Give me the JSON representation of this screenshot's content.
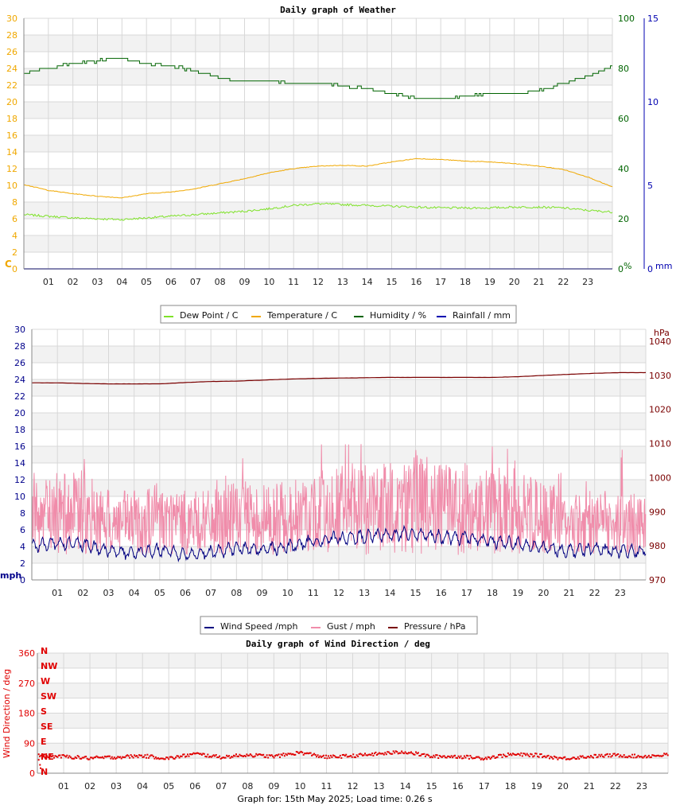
{
  "footer": "Graph for: 15th May 2025; Load time: 0.26 s",
  "colors": {
    "dew": "#7fe22a",
    "temp": "#f0a800",
    "hum": "#006400",
    "rain": "#0000b0",
    "wind": "#000080",
    "gust": "#f08caa",
    "press": "#7a0000",
    "dir": "#e00000",
    "band": "#f2f2f2",
    "grid": "#d8d8d8"
  },
  "chart_data": [
    {
      "id": "weather",
      "type": "line",
      "title": "Daily graph of Weather",
      "x_ticks": [
        "01",
        "02",
        "03",
        "04",
        "05",
        "06",
        "07",
        "08",
        "09",
        "10",
        "11",
        "12",
        "13",
        "14",
        "15",
        "16",
        "17",
        "18",
        "19",
        "20",
        "21",
        "22",
        "23"
      ],
      "y_left": {
        "unit": "C",
        "ticks": [
          0,
          2,
          4,
          6,
          8,
          10,
          12,
          14,
          16,
          18,
          20,
          22,
          24,
          26,
          28,
          30
        ],
        "ylim": [
          0,
          30
        ]
      },
      "y_right_1": {
        "unit": "%",
        "ticks": [
          0,
          20,
          40,
          60,
          80,
          100
        ],
        "ylim": [
          0,
          100
        ]
      },
      "y_right_2": {
        "unit": "mm",
        "ticks": [
          0,
          5,
          10,
          15
        ],
        "ylim": [
          0,
          15
        ]
      },
      "grid": true,
      "legend": [
        "Dew Point / C",
        "Temperature / C",
        "Humidity / %",
        "Rainfall / mm"
      ],
      "series": [
        {
          "name": "Dew Point / C",
          "axis": "left",
          "x": [
            0,
            1,
            2,
            3,
            4,
            5,
            6,
            7,
            8,
            9,
            10,
            11,
            12,
            13,
            14,
            15,
            16,
            17,
            18,
            19,
            20,
            21,
            22,
            23,
            24
          ],
          "values": [
            6.5,
            6.3,
            6.1,
            6.0,
            5.9,
            6.1,
            6.3,
            6.5,
            6.7,
            6.9,
            7.2,
            7.6,
            7.8,
            7.7,
            7.6,
            7.5,
            7.4,
            7.3,
            7.3,
            7.3,
            7.4,
            7.4,
            7.3,
            7.0,
            6.8
          ]
        },
        {
          "name": "Temperature / C",
          "axis": "left",
          "x": [
            0,
            1,
            2,
            3,
            4,
            5,
            6,
            7,
            8,
            9,
            10,
            11,
            12,
            13,
            14,
            15,
            16,
            17,
            18,
            19,
            20,
            21,
            22,
            23,
            24
          ],
          "values": [
            10.1,
            9.4,
            9.0,
            8.7,
            8.5,
            9.0,
            9.2,
            9.6,
            10.2,
            10.8,
            11.5,
            12.0,
            12.3,
            12.4,
            12.3,
            12.8,
            13.2,
            13.1,
            12.9,
            12.8,
            12.6,
            12.3,
            11.9,
            11.0,
            9.8
          ]
        },
        {
          "name": "Humidity / %",
          "axis": "right1",
          "x": [
            0,
            1,
            2,
            3,
            3.5,
            4,
            5,
            6,
            7,
            8,
            9,
            10,
            11,
            12,
            13,
            14,
            15,
            16,
            17,
            18,
            19,
            20,
            21,
            22,
            23,
            24
          ],
          "values": [
            78,
            80,
            82,
            83,
            84,
            84,
            82,
            81,
            79,
            76,
            75,
            75,
            74,
            74,
            73,
            72,
            70,
            68,
            68,
            69,
            70,
            70,
            71,
            74,
            77,
            81
          ]
        },
        {
          "name": "Rainfall / mm",
          "axis": "right2",
          "x": [
            0,
            24
          ],
          "values": [
            0,
            0
          ]
        }
      ]
    },
    {
      "id": "wind",
      "type": "line",
      "title": "",
      "x_ticks": [
        "01",
        "02",
        "03",
        "04",
        "05",
        "06",
        "07",
        "08",
        "09",
        "10",
        "11",
        "12",
        "13",
        "14",
        "15",
        "16",
        "17",
        "18",
        "19",
        "20",
        "21",
        "22",
        "23"
      ],
      "y_left": {
        "unit": "mph",
        "ticks": [
          0,
          2,
          4,
          6,
          8,
          10,
          12,
          14,
          16,
          18,
          20,
          22,
          24,
          26,
          28,
          30
        ],
        "ylim": [
          0,
          30
        ]
      },
      "y_right": {
        "unit": "hPa",
        "ticks": [
          970,
          980,
          990,
          1000,
          1010,
          1020,
          1030,
          1040
        ],
        "ylim": [
          970,
          1043.5
        ]
      },
      "grid": true,
      "legend": [
        "Wind Speed /mph",
        "Gust / mph",
        "Pressure / hPa"
      ],
      "series": [
        {
          "name": "Wind Speed /mph",
          "axis": "left",
          "x": [
            0,
            1,
            2,
            3,
            4,
            5,
            6,
            7,
            8,
            9,
            10,
            11,
            12,
            13,
            14,
            15,
            16,
            17,
            18,
            19,
            20,
            21,
            22,
            23,
            24
          ],
          "values": [
            4.0,
            4.5,
            4.2,
            3.5,
            3.2,
            3.6,
            3.0,
            3.3,
            3.8,
            3.6,
            4.0,
            4.6,
            5.0,
            5.2,
            5.4,
            5.6,
            5.1,
            5.0,
            4.6,
            4.3,
            3.8,
            3.5,
            3.7,
            3.4,
            3.4
          ]
        },
        {
          "name": "Gust / mph",
          "axis": "left",
          "x": [
            0,
            1,
            2,
            3,
            4,
            5,
            6,
            7,
            8,
            9,
            10,
            11,
            12,
            13,
            14,
            15,
            16,
            17,
            18,
            19,
            20,
            21,
            22,
            23,
            24
          ],
          "values": [
            8,
            9,
            9,
            7,
            7,
            8,
            7,
            7,
            8,
            8,
            8,
            9,
            10,
            10,
            10,
            11,
            10,
            10,
            9,
            9,
            8,
            7,
            7,
            7,
            7
          ]
        },
        {
          "name": "Pressure / hPa",
          "axis": "right",
          "x": [
            0,
            1,
            2,
            3,
            4,
            5,
            6,
            7,
            8,
            9,
            10,
            11,
            12,
            13,
            14,
            15,
            16,
            17,
            18,
            19,
            20,
            21,
            22,
            23,
            24
          ],
          "values": [
            1027.8,
            1027.8,
            1027.6,
            1027.5,
            1027.5,
            1027.5,
            1027.9,
            1028.2,
            1028.3,
            1028.6,
            1028.9,
            1029.1,
            1029.2,
            1029.3,
            1029.4,
            1029.4,
            1029.4,
            1029.4,
            1029.4,
            1029.6,
            1030.0,
            1030.3,
            1030.6,
            1030.8,
            1030.8
          ]
        }
      ]
    },
    {
      "id": "direction",
      "type": "scatter",
      "title": "Daily graph of Wind Direction / deg",
      "x_ticks": [
        "01",
        "02",
        "03",
        "04",
        "05",
        "06",
        "07",
        "08",
        "09",
        "10",
        "11",
        "12",
        "13",
        "14",
        "15",
        "16",
        "17",
        "18",
        "19",
        "20",
        "21",
        "22",
        "23"
      ],
      "y_left": {
        "label": "Wind Direction / deg",
        "ticks": [
          0,
          90,
          180,
          270,
          360
        ],
        "ylim": [
          0,
          360
        ]
      },
      "compass": [
        "N",
        "NW",
        "W",
        "SW",
        "S",
        "SE",
        "E",
        "NE",
        "N"
      ],
      "grid": true,
      "series": [
        {
          "name": "",
          "x": [
            0,
            1,
            2,
            3,
            4,
            5,
            6,
            7,
            8,
            9,
            10,
            11,
            12,
            13,
            14,
            15,
            16,
            17,
            18,
            19,
            20,
            21,
            22,
            23,
            24
          ],
          "values": [
            52,
            50,
            45,
            48,
            52,
            44,
            58,
            48,
            55,
            50,
            62,
            48,
            52,
            58,
            64,
            50,
            50,
            45,
            56,
            54,
            44,
            50,
            54,
            50,
            55
          ]
        }
      ]
    }
  ]
}
